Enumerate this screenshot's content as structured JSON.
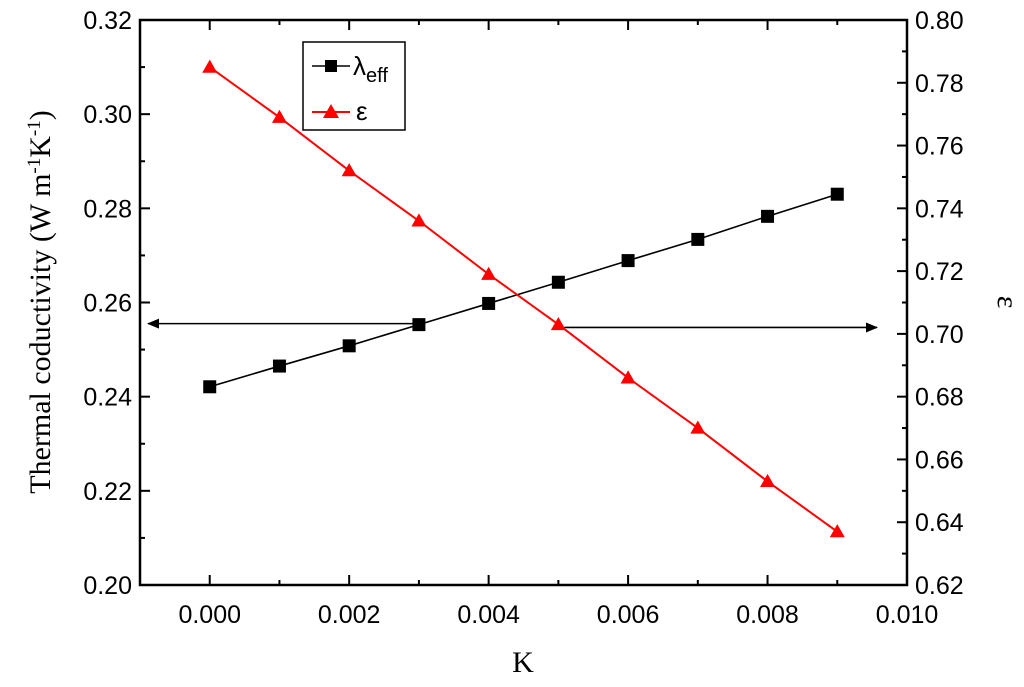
{
  "chart_data": {
    "type": "line",
    "x": [
      0.0,
      0.001,
      0.002,
      0.003,
      0.004,
      0.005,
      0.006,
      0.007,
      0.008,
      0.009
    ],
    "xlabel": "K",
    "xlim": [
      -0.001,
      0.01
    ],
    "xticks": [
      "0.000",
      "0.002",
      "0.004",
      "0.006",
      "0.008",
      "0.010"
    ],
    "ylabel_left": "Thermal coductivity (W m-1K-1)",
    "ylabel_left_parts": {
      "pre": "Thermal coductivity (W m",
      "sup1": "-1",
      "mid": "K",
      "sup2": "-1",
      "post": ")"
    },
    "ylim_left": [
      0.2,
      0.32
    ],
    "yticks_left": [
      "0.20",
      "0.22",
      "0.24",
      "0.26",
      "0.28",
      "0.30",
      "0.32"
    ],
    "ylabel_right": "ε",
    "ylim_right": [
      0.62,
      0.8
    ],
    "yticks_right": [
      "0.62",
      "0.64",
      "0.66",
      "0.68",
      "0.70",
      "0.72",
      "0.74",
      "0.76",
      "0.78",
      "0.80"
    ],
    "series": [
      {
        "name": "λeff",
        "name_parts": {
          "base": "λ",
          "sub": "eff"
        },
        "axis": "left",
        "color": "#000000",
        "marker": "square",
        "values": [
          0.2421,
          0.2465,
          0.2508,
          0.2553,
          0.2598,
          0.2643,
          0.2689,
          0.2734,
          0.2783,
          0.283
        ]
      },
      {
        "name": "ε",
        "axis": "right",
        "color": "#ff0000",
        "marker": "triangle",
        "values": [
          0.785,
          0.769,
          0.752,
          0.736,
          0.719,
          0.703,
          0.686,
          0.67,
          0.653,
          0.637
        ]
      }
    ],
    "annotations": [
      {
        "type": "arrow",
        "points_to": "left-axis",
        "series": "λeff"
      },
      {
        "type": "arrow",
        "points_to": "right-axis",
        "series": "ε"
      }
    ],
    "legend_position": "top-left",
    "grid": false
  }
}
